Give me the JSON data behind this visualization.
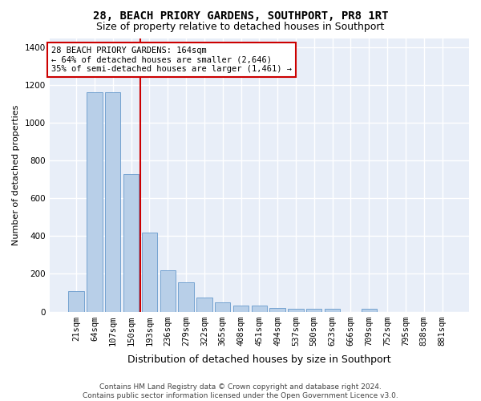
{
  "title": "28, BEACH PRIORY GARDENS, SOUTHPORT, PR8 1RT",
  "subtitle": "Size of property relative to detached houses in Southport",
  "xlabel": "Distribution of detached houses by size in Southport",
  "ylabel": "Number of detached properties",
  "footer_line1": "Contains HM Land Registry data © Crown copyright and database right 2024.",
  "footer_line2": "Contains public sector information licensed under the Open Government Licence v3.0.",
  "annotation_line1": "28 BEACH PRIORY GARDENS: 164sqm",
  "annotation_line2": "← 64% of detached houses are smaller (2,646)",
  "annotation_line3": "35% of semi-detached houses are larger (1,461) →",
  "bar_color": "#b8cfe8",
  "bar_edge_color": "#6699cc",
  "vline_color": "#cc0000",
  "annotation_box_edgecolor": "#cc0000",
  "background_color": "#e8eef8",
  "grid_color": "#ffffff",
  "fig_bg_color": "#ffffff",
  "categories": [
    "21sqm",
    "64sqm",
    "107sqm",
    "150sqm",
    "193sqm",
    "236sqm",
    "279sqm",
    "322sqm",
    "365sqm",
    "408sqm",
    "451sqm",
    "494sqm",
    "537sqm",
    "580sqm",
    "623sqm",
    "666sqm",
    "709sqm",
    "752sqm",
    "795sqm",
    "838sqm",
    "881sqm"
  ],
  "values": [
    108,
    1165,
    1165,
    730,
    420,
    218,
    155,
    75,
    50,
    32,
    30,
    20,
    15,
    13,
    13,
    0,
    13,
    0,
    0,
    0,
    0
  ],
  "vline_x_index": 3.5,
  "ylim": [
    0,
    1450
  ],
  "yticks": [
    0,
    200,
    400,
    600,
    800,
    1000,
    1200,
    1400
  ],
  "title_fontsize": 10,
  "subtitle_fontsize": 9,
  "ylabel_fontsize": 8,
  "xlabel_fontsize": 9,
  "tick_fontsize": 7.5,
  "annotation_fontsize": 7.5,
  "footer_fontsize": 6.5
}
